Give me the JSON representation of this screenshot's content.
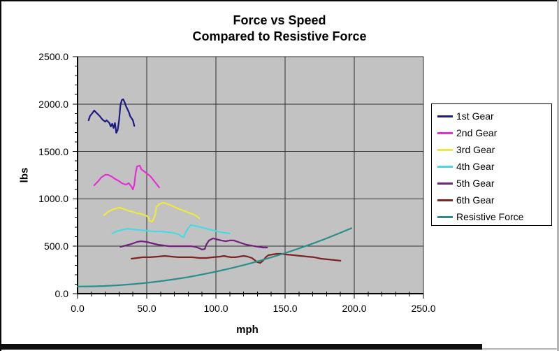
{
  "frame": {
    "background": "#ffffff",
    "border_color": "#000000",
    "plot_background": "#c2c2c2",
    "gridline_color": "#303030",
    "axis_color": "#000000"
  },
  "chart_data": {
    "type": "line",
    "title_line1": "Force vs Speed",
    "title_line2": "Compared to Resistive Force",
    "legend_position": "right",
    "grid": true,
    "x_axis": {
      "title": "mph",
      "min": 0,
      "max": 250,
      "major_tick": 50,
      "minor_tick": 10,
      "tick_labels": [
        "0.0",
        "50.0",
        "100.0",
        "150.0",
        "200.0",
        "250.0"
      ]
    },
    "y_axis": {
      "title": "lbs",
      "min": 0,
      "max": 2500,
      "major_tick": 500,
      "minor_tick": 100,
      "tick_labels": [
        "0.0",
        "500.0",
        "1000.0",
        "1500.0",
        "2000.0",
        "2500.0"
      ]
    },
    "series": [
      {
        "name": "1st Gear",
        "color": "#1a1a80",
        "points": [
          [
            8,
            1829
          ],
          [
            9,
            1873
          ],
          [
            11,
            1910
          ],
          [
            12,
            1932
          ],
          [
            14,
            1903
          ],
          [
            16,
            1873
          ],
          [
            18,
            1836
          ],
          [
            20,
            1814
          ],
          [
            21,
            1829
          ],
          [
            23,
            1800
          ],
          [
            24,
            1763
          ],
          [
            25,
            1792
          ],
          [
            26,
            1748
          ],
          [
            27,
            1800
          ],
          [
            28,
            1696
          ],
          [
            29,
            1726
          ],
          [
            30,
            1829
          ],
          [
            31,
            1991
          ],
          [
            32,
            2043
          ],
          [
            33,
            2050
          ],
          [
            34,
            2021
          ],
          [
            35,
            1977
          ],
          [
            37,
            1917
          ],
          [
            38,
            1873
          ],
          [
            40,
            1829
          ],
          [
            41,
            1770
          ]
        ]
      },
      {
        "name": "2nd Gear",
        "color": "#e62ed4",
        "points": [
          [
            12,
            1143
          ],
          [
            15,
            1187
          ],
          [
            17,
            1224
          ],
          [
            20,
            1254
          ],
          [
            22,
            1254
          ],
          [
            25,
            1232
          ],
          [
            27,
            1210
          ],
          [
            30,
            1187
          ],
          [
            32,
            1165
          ],
          [
            35,
            1150
          ],
          [
            37,
            1165
          ],
          [
            39,
            1128
          ],
          [
            40,
            1099
          ],
          [
            41,
            1150
          ],
          [
            42,
            1276
          ],
          [
            43,
            1342
          ],
          [
            45,
            1350
          ],
          [
            46,
            1313
          ],
          [
            48,
            1291
          ],
          [
            50,
            1268
          ],
          [
            52,
            1246
          ],
          [
            53,
            1232
          ],
          [
            55,
            1195
          ],
          [
            57,
            1158
          ],
          [
            59,
            1121
          ]
        ]
      },
      {
        "name": "3rd Gear",
        "color": "#efe93f",
        "points": [
          [
            19,
            826
          ],
          [
            22,
            863
          ],
          [
            26,
            892
          ],
          [
            30,
            907
          ],
          [
            32,
            900
          ],
          [
            36,
            878
          ],
          [
            40,
            863
          ],
          [
            43,
            848
          ],
          [
            46,
            841
          ],
          [
            49,
            826
          ],
          [
            51,
            811
          ],
          [
            52,
            767
          ],
          [
            54,
            760
          ],
          [
            56,
            826
          ],
          [
            57,
            914
          ],
          [
            59,
            944
          ],
          [
            62,
            959
          ],
          [
            64,
            951
          ],
          [
            68,
            929
          ],
          [
            71,
            907
          ],
          [
            75,
            885
          ],
          [
            79,
            863
          ],
          [
            83,
            841
          ],
          [
            86,
            819
          ],
          [
            88,
            796
          ]
        ]
      },
      {
        "name": "4th Gear",
        "color": "#4cd8e2",
        "points": [
          [
            25,
            634
          ],
          [
            28,
            656
          ],
          [
            32,
            671
          ],
          [
            36,
            686
          ],
          [
            40,
            678
          ],
          [
            45,
            671
          ],
          [
            50,
            664
          ],
          [
            55,
            656
          ],
          [
            60,
            656
          ],
          [
            65,
            649
          ],
          [
            69,
            642
          ],
          [
            73,
            627
          ],
          [
            75,
            605
          ],
          [
            77,
            597
          ],
          [
            78,
            642
          ],
          [
            80,
            693
          ],
          [
            82,
            723
          ],
          [
            85,
            715
          ],
          [
            89,
            701
          ],
          [
            93,
            686
          ],
          [
            97,
            671
          ],
          [
            101,
            656
          ],
          [
            106,
            642
          ],
          [
            110,
            634
          ]
        ]
      },
      {
        "name": "5th Gear",
        "color": "#73217e",
        "points": [
          [
            31,
            494
          ],
          [
            35,
            509
          ],
          [
            39,
            524
          ],
          [
            43,
            546
          ],
          [
            46,
            553
          ],
          [
            50,
            546
          ],
          [
            54,
            531
          ],
          [
            58,
            516
          ],
          [
            62,
            509
          ],
          [
            66,
            501
          ],
          [
            70,
            501
          ],
          [
            74,
            501
          ],
          [
            78,
            501
          ],
          [
            82,
            501
          ],
          [
            85,
            494
          ],
          [
            88,
            479
          ],
          [
            90,
            465
          ],
          [
            92,
            472
          ],
          [
            93,
            516
          ],
          [
            95,
            561
          ],
          [
            98,
            583
          ],
          [
            100,
            575
          ],
          [
            104,
            561
          ],
          [
            107,
            553
          ],
          [
            110,
            561
          ],
          [
            113,
            561
          ],
          [
            116,
            546
          ],
          [
            119,
            531
          ],
          [
            122,
            516
          ],
          [
            125,
            509
          ],
          [
            128,
            501
          ],
          [
            131,
            494
          ],
          [
            134,
            487
          ],
          [
            137,
            487
          ]
        ]
      },
      {
        "name": "6th Gear",
        "color": "#7e2222",
        "points": [
          [
            39,
            369
          ],
          [
            43,
            376
          ],
          [
            47,
            384
          ],
          [
            52,
            384
          ],
          [
            58,
            391
          ],
          [
            63,
            398
          ],
          [
            68,
            391
          ],
          [
            73,
            384
          ],
          [
            78,
            384
          ],
          [
            83,
            384
          ],
          [
            88,
            376
          ],
          [
            93,
            376
          ],
          [
            98,
            384
          ],
          [
            103,
            391
          ],
          [
            106,
            398
          ],
          [
            108,
            391
          ],
          [
            111,
            384
          ],
          [
            114,
            384
          ],
          [
            117,
            391
          ],
          [
            120,
            398
          ],
          [
            123,
            391
          ],
          [
            126,
            376
          ],
          [
            128,
            354
          ],
          [
            130,
            332
          ],
          [
            132,
            324
          ],
          [
            134,
            347
          ],
          [
            136,
            384
          ],
          [
            138,
            406
          ],
          [
            141,
            413
          ],
          [
            144,
            420
          ],
          [
            147,
            420
          ],
          [
            151,
            413
          ],
          [
            156,
            406
          ],
          [
            161,
            398
          ],
          [
            166,
            391
          ],
          [
            171,
            384
          ],
          [
            176,
            369
          ],
          [
            181,
            361
          ],
          [
            186,
            354
          ],
          [
            190,
            347
          ]
        ]
      },
      {
        "name": "Resistive Force",
        "color": "#2a8f8c",
        "points": [
          [
            0,
            75
          ],
          [
            10,
            77
          ],
          [
            20,
            81
          ],
          [
            30,
            89
          ],
          [
            40,
            100
          ],
          [
            50,
            114
          ],
          [
            60,
            132
          ],
          [
            70,
            152
          ],
          [
            80,
            175
          ],
          [
            90,
            202
          ],
          [
            100,
            232
          ],
          [
            110,
            265
          ],
          [
            120,
            301
          ],
          [
            130,
            340
          ],
          [
            140,
            383
          ],
          [
            150,
            428
          ],
          [
            160,
            477
          ],
          [
            170,
            529
          ],
          [
            180,
            583
          ],
          [
            190,
            642
          ],
          [
            198,
            690
          ]
        ]
      }
    ]
  }
}
